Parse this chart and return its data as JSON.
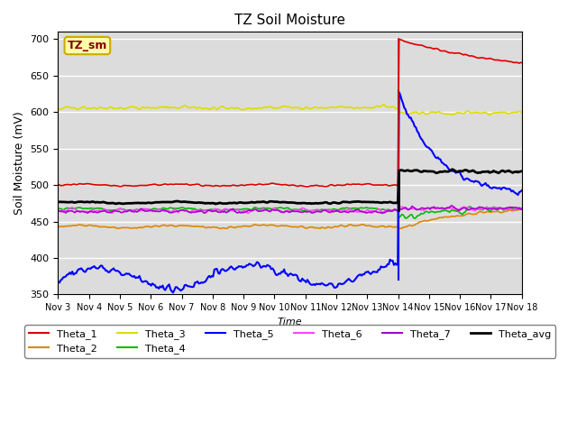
{
  "title": "TZ Soil Moisture",
  "xlabel": "Time",
  "ylabel": "Soil Moisture (mV)",
  "ylim": [
    350,
    710
  ],
  "yticks": [
    350,
    400,
    450,
    500,
    550,
    600,
    650,
    700
  ],
  "background_color": "#dcdcdc",
  "legend_label": "TZ_sm",
  "legend_box_facecolor": "#ffffaa",
  "legend_box_edgecolor": "#ccaa00",
  "series": {
    "Theta_1": {
      "color": "#dd0000",
      "lw": 1.2
    },
    "Theta_2": {
      "color": "#dd8800",
      "lw": 1.2
    },
    "Theta_3": {
      "color": "#dddd00",
      "lw": 1.2
    },
    "Theta_4": {
      "color": "#00bb00",
      "lw": 1.2
    },
    "Theta_5": {
      "color": "#0000ff",
      "lw": 1.5
    },
    "Theta_6": {
      "color": "#ff44ff",
      "lw": 1.2
    },
    "Theta_7": {
      "color": "#aa00cc",
      "lw": 1.2
    },
    "Theta_avg": {
      "color": "#000000",
      "lw": 2.0
    }
  },
  "num_days": 15,
  "start_day": 3,
  "ppd": 24,
  "rain_day": 11
}
